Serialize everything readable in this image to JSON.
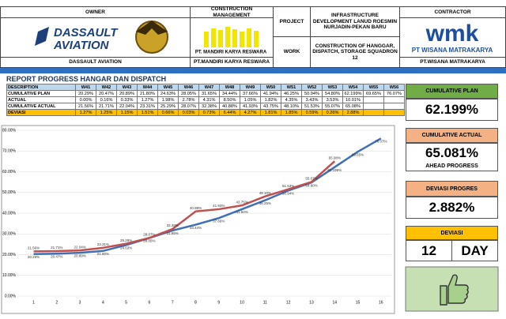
{
  "header": {
    "owner_label": "OWNER",
    "cm_label": "CONSTRUCTION MANAGEMENT",
    "project_label": "PROJECT",
    "project": "INFRASTRUCTURE DEVELOPMENT LANUD ROESMIN NURJADIN-PEKAN BARU",
    "work_label": "WORK",
    "work": "CONSTRUCTION OF HANGGAR, DISPATCH, STORAGE SQUADRON 12",
    "contractor_label": "CONTRACTOR",
    "owner_logo": [
      "DASSAULT",
      "AVIATION"
    ],
    "cm_logo": "PT. MANDIRI KARYA RESWARA",
    "contractor_logo": "wmk",
    "contractor_logo_name": "PT WISANA MATRAKARYA",
    "owner": "DASSAULT AVIATION",
    "cm": "PT.MANDIRI KARYA RESWARA",
    "contractor": "PT.WISANA MATRAKARYA"
  },
  "table": {
    "title": "REPORT PROGRESS HANGAR DAN DISPATCH",
    "columns": [
      "DESCRIPTION",
      "W41",
      "W42",
      "W43",
      "W44",
      "W45",
      "W46",
      "W47",
      "W48",
      "W49",
      "W50",
      "W51",
      "W52",
      "W53",
      "W54",
      "W55",
      "W56"
    ],
    "rows": [
      {
        "label": "CUMULATIVE PLAN",
        "cells": [
          "20.29%",
          "20.47%",
          "20.89%",
          "21.80%",
          "24.63%",
          "28.05%",
          "31.65%",
          "34.44%",
          "37.66%",
          "41.94%",
          "46.25%",
          "50.94%",
          "54.80%",
          "62.199%",
          "69.65%",
          "76.07%"
        ]
      },
      {
        "label": "ACTUAL",
        "cells": [
          "0.00%",
          "0.16%",
          "0.33%",
          "1.27%",
          "1.98%",
          "2.78%",
          "4.31%",
          "8.50%",
          "1.05%",
          "1.82%",
          "4.35%",
          "3.43%",
          "3.53%",
          "10.01%",
          null,
          null
        ]
      },
      {
        "label": "CUMULATIVE ACTUAL",
        "cells": [
          "21.56%",
          "21.71%",
          "22.04%",
          "23.31%",
          "25.29%",
          "28.07%",
          "32.38%",
          "40.88%",
          "41.93%",
          "43.75%",
          "48.10%",
          "51.53%",
          "55.07%",
          "65.08%",
          null,
          null
        ]
      },
      {
        "label": "DEVIASI",
        "cells": [
          "1.27%",
          "1.25%",
          "1.15%",
          "1.51%",
          "0.66%",
          "0.03%",
          "0.73%",
          "6.44%",
          "4.27%",
          "1.81%",
          "1.85%",
          "0.59%",
          "0.26%",
          "2.88%",
          null,
          null
        ]
      }
    ]
  },
  "summary": {
    "plan_label": "CUMULATIVE PLAN",
    "plan": "62.199%",
    "actual_label": "CUMULATIVE ACTUAL",
    "actual": "65.081%",
    "status": "AHEAD PROGRESS",
    "deviation_label": "DEVIASI PROGRES",
    "deviation": "2.882%",
    "days_label": "DEVIASI",
    "days": "12",
    "days_unit": "DAY"
  },
  "chart_data": {
    "type": "line",
    "x": [
      1,
      2,
      3,
      4,
      5,
      6,
      7,
      8,
      9,
      10,
      11,
      12,
      13,
      14,
      15,
      16
    ],
    "xlim": [
      0.3,
      16.45
    ],
    "xticks": [
      1,
      2,
      3,
      4,
      5,
      6,
      7,
      8,
      9,
      10,
      11,
      12,
      13,
      14,
      15,
      16
    ],
    "ylim": [
      0,
      80
    ],
    "yticks": [
      {
        "value": 0,
        "label": "0.00%"
      },
      {
        "value": 10,
        "label": "10.00%"
      },
      {
        "value": 20,
        "label": "20.00%"
      },
      {
        "value": 30,
        "label": "30.00%"
      },
      {
        "value": 40,
        "label": "40.00%"
      },
      {
        "value": 50,
        "label": "50.00%"
      },
      {
        "value": 60,
        "label": "60.00%"
      },
      {
        "value": 70,
        "label": "70.00%"
      },
      {
        "value": 80,
        "label": "80.00%"
      }
    ],
    "series": [
      {
        "color": "#3f6fb6",
        "values": [
          20.29,
          20.47,
          20.89,
          21.8,
          24.63,
          28.05,
          31.65,
          34.44,
          37.66,
          41.94,
          46.25,
          50.94,
          54.8,
          62.199,
          69.65,
          76.07
        ],
        "value_labels": [
          "20.29%",
          "20.47%",
          "20.89%",
          "21.80%",
          "24.63%",
          "28.05%",
          "31.65%",
          "34.44%",
          "37.66%",
          "41.94%",
          "46.25%",
          "50.94%",
          "54.80%",
          "62.199%",
          "69.65%",
          "76.07%"
        ]
      },
      {
        "color": "#c0504d",
        "values": [
          21.56,
          21.71,
          22.04,
          23.31,
          25.29,
          28.07,
          32.38,
          40.88,
          41.93,
          43.75,
          48.1,
          51.53,
          55.07,
          65.08,
          null,
          null
        ],
        "value_labels": [
          "21.56%",
          "21.71%",
          "22.04%",
          "23.31%",
          "25.29%",
          "28.07%",
          "32.38%",
          "40.88%",
          "41.93%",
          "43.75%",
          "48.10%",
          "51.53%",
          "55.07%",
          "65.08%",
          null,
          null
        ]
      }
    ]
  }
}
